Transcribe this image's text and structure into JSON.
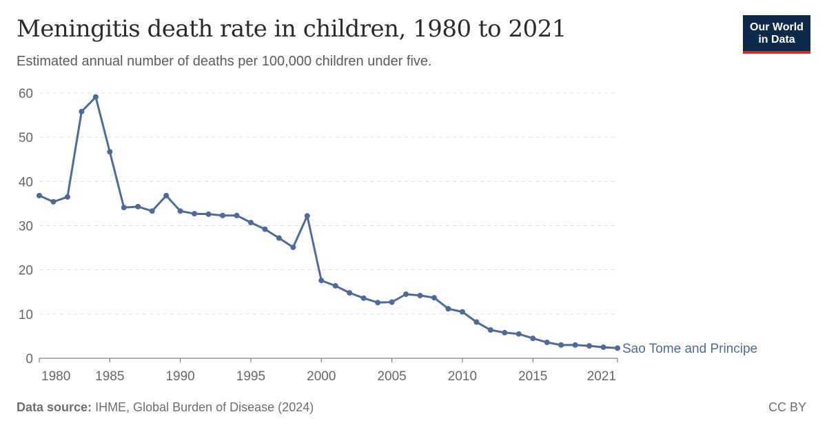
{
  "header": {
    "title": "Meningitis death rate in children, 1980 to 2021",
    "subtitle": "Estimated annual number of deaths per 100,000 children under five."
  },
  "logo": {
    "line1": "Our World",
    "line2": "in Data"
  },
  "footer": {
    "source_label": "Data source:",
    "source_text": "IHME, Global Burden of Disease (2024)",
    "license": "CC BY"
  },
  "colors": {
    "series": "#4c6a9c",
    "grid": "#dddddd",
    "axis": "#666666"
  },
  "chart_data": {
    "type": "line",
    "title": "Meningitis death rate in children, 1980 to 2021",
    "subtitle": "Estimated annual number of deaths per 100,000 children under five.",
    "xlim": [
      1980,
      2021
    ],
    "ylim": [
      0,
      60
    ],
    "x_ticks": [
      1980,
      1985,
      1990,
      1995,
      2000,
      2005,
      2010,
      2015,
      2021
    ],
    "y_ticks": [
      0,
      10,
      20,
      30,
      40,
      50,
      60
    ],
    "grid": "horizontal dashed",
    "series": [
      {
        "name": "Sao Tome and Principe",
        "color": "#4c6a9c",
        "x": [
          1980,
          1981,
          1982,
          1983,
          1984,
          1985,
          1986,
          1987,
          1988,
          1989,
          1990,
          1991,
          1992,
          1993,
          1994,
          1995,
          1996,
          1997,
          1998,
          1999,
          2000,
          2001,
          2002,
          2003,
          2004,
          2005,
          2006,
          2007,
          2008,
          2009,
          2010,
          2011,
          2012,
          2013,
          2014,
          2015,
          2016,
          2017,
          2018,
          2019,
          2020,
          2021
        ],
        "values": [
          36.8,
          35.4,
          36.5,
          55.8,
          59.1,
          46.7,
          34.1,
          34.3,
          33.3,
          36.8,
          33.3,
          32.7,
          32.6,
          32.3,
          32.3,
          30.7,
          29.2,
          27.2,
          25.1,
          32.2,
          17.6,
          16.4,
          14.8,
          13.6,
          12.6,
          12.7,
          14.5,
          14.2,
          13.7,
          11.2,
          10.5,
          8.2,
          6.4,
          5.8,
          5.5,
          4.5,
          3.6,
          3.0,
          3.0,
          2.8,
          2.5,
          2.3
        ]
      }
    ]
  }
}
